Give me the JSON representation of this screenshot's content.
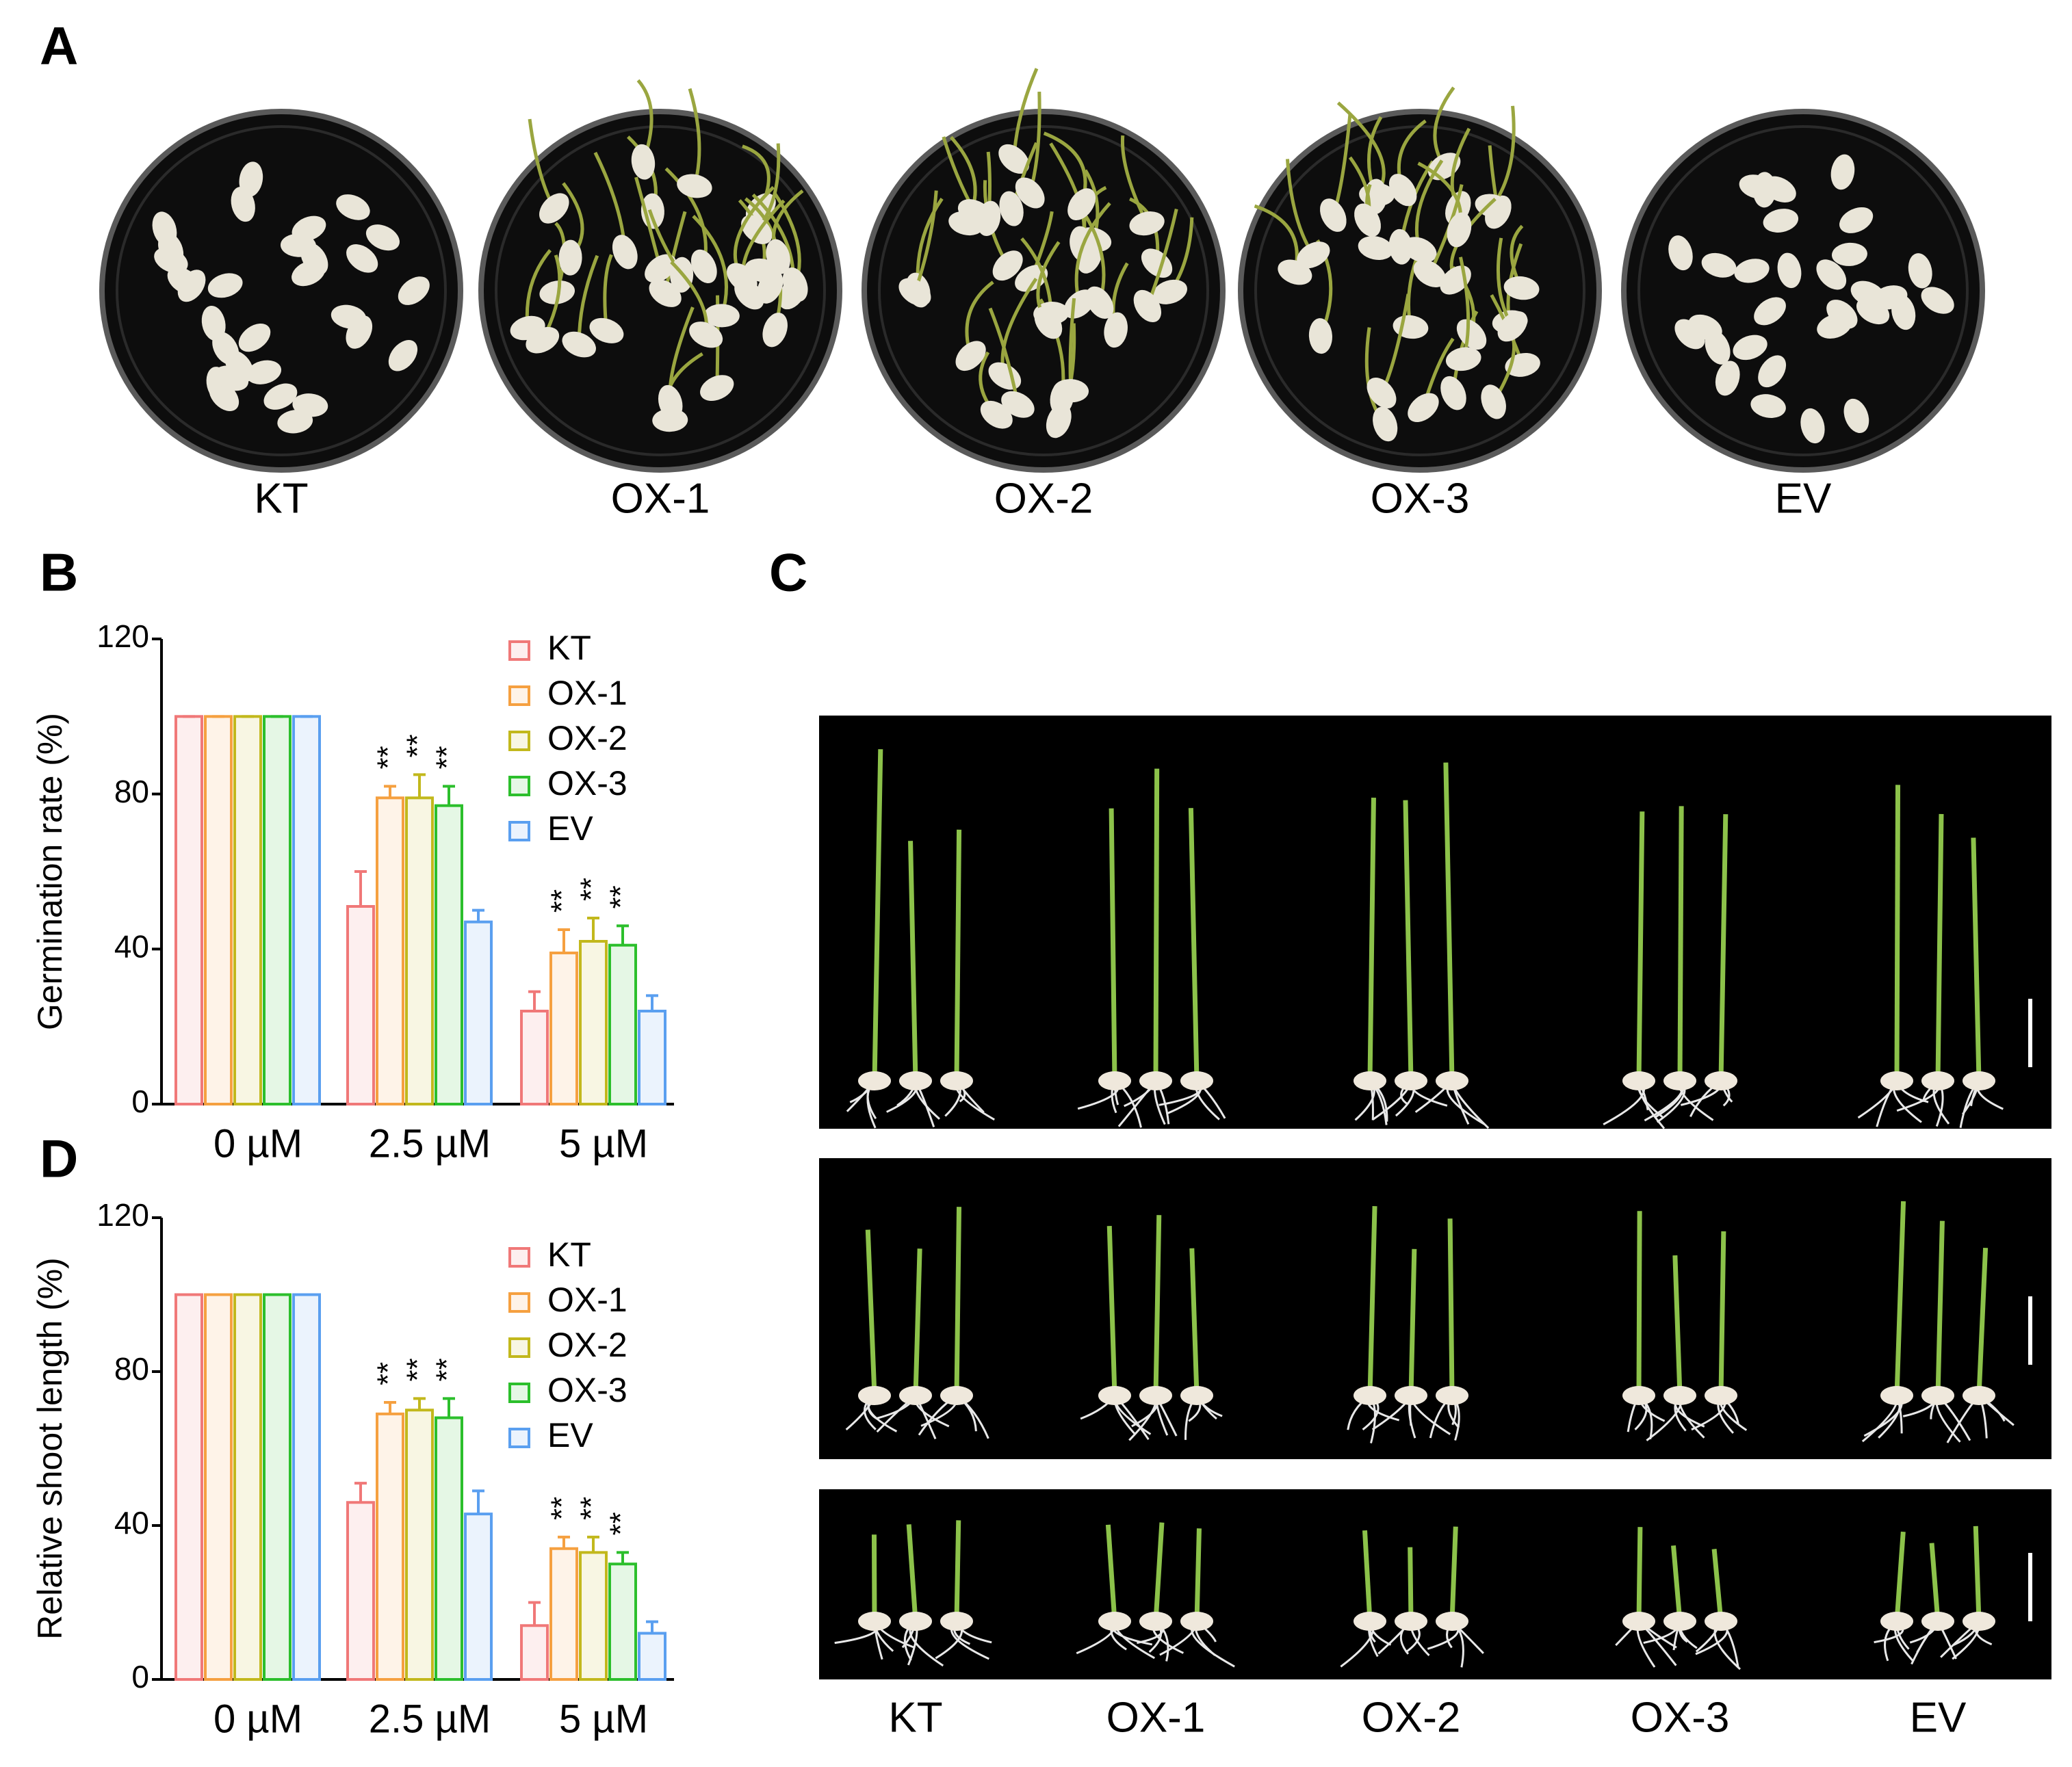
{
  "panel_a": {
    "label": "A",
    "plates": [
      "KT",
      "OX-1",
      "OX-2",
      "OX-3",
      "EV"
    ]
  },
  "panel_c": {
    "label": "C",
    "genotypes": [
      "KT",
      "OX-1",
      "OX-2",
      "OX-3",
      "EV"
    ]
  },
  "chart_data": [
    {
      "type": "bar",
      "panel_label": "B",
      "ylabel": "Germination rate (%)",
      "categories": [
        "0 µM",
        "2.5 µM",
        "5 µM"
      ],
      "series": [
        {
          "name": "KT",
          "color": "#f07878",
          "values": [
            100,
            51,
            24
          ],
          "errors": [
            0,
            9,
            5
          ],
          "significance": [
            null,
            null,
            null
          ]
        },
        {
          "name": "OX-1",
          "color": "#f5a040",
          "values": [
            100,
            79,
            39
          ],
          "errors": [
            0,
            3,
            6
          ],
          "significance": [
            null,
            "**",
            "**"
          ]
        },
        {
          "name": "OX-2",
          "color": "#c2b81c",
          "values": [
            100,
            79,
            42
          ],
          "errors": [
            0,
            6,
            6
          ],
          "significance": [
            null,
            "**",
            "**"
          ]
        },
        {
          "name": "OX-3",
          "color": "#2cbf2c",
          "values": [
            100,
            77,
            41
          ],
          "errors": [
            0,
            5,
            5
          ],
          "significance": [
            null,
            "**",
            "**"
          ]
        },
        {
          "name": "EV",
          "color": "#5a9ff0",
          "values": [
            100,
            47,
            24
          ],
          "errors": [
            0,
            3,
            4
          ],
          "significance": [
            null,
            null,
            null
          ]
        }
      ],
      "ylim": [
        0,
        120
      ],
      "yticks": [
        0,
        40,
        80,
        120
      ],
      "legend": "upper right"
    },
    {
      "type": "bar",
      "panel_label": "D",
      "ylabel": "Relative shoot length (%)",
      "categories": [
        "0 µM",
        "2.5 µM",
        "5 µM"
      ],
      "series": [
        {
          "name": "KT",
          "color": "#f07878",
          "values": [
            100,
            46,
            14
          ],
          "errors": [
            0,
            5,
            6
          ],
          "significance": [
            null,
            null,
            null
          ]
        },
        {
          "name": "OX-1",
          "color": "#f5a040",
          "values": [
            100,
            69,
            34
          ],
          "errors": [
            0,
            3,
            3
          ],
          "significance": [
            null,
            "**",
            "**"
          ]
        },
        {
          "name": "OX-2",
          "color": "#c2b81c",
          "values": [
            100,
            70,
            33
          ],
          "errors": [
            0,
            3,
            4
          ],
          "significance": [
            null,
            "**",
            "**"
          ]
        },
        {
          "name": "OX-3",
          "color": "#2cbf2c",
          "values": [
            100,
            68,
            30
          ],
          "errors": [
            0,
            5,
            3
          ],
          "significance": [
            null,
            "**",
            "**"
          ]
        },
        {
          "name": "EV",
          "color": "#5a9ff0",
          "values": [
            100,
            43,
            12
          ],
          "errors": [
            0,
            6,
            3
          ],
          "significance": [
            null,
            null,
            null
          ]
        }
      ],
      "ylim": [
        0,
        120
      ],
      "yticks": [
        0,
        40,
        80,
        120
      ],
      "legend": "upper right"
    }
  ]
}
